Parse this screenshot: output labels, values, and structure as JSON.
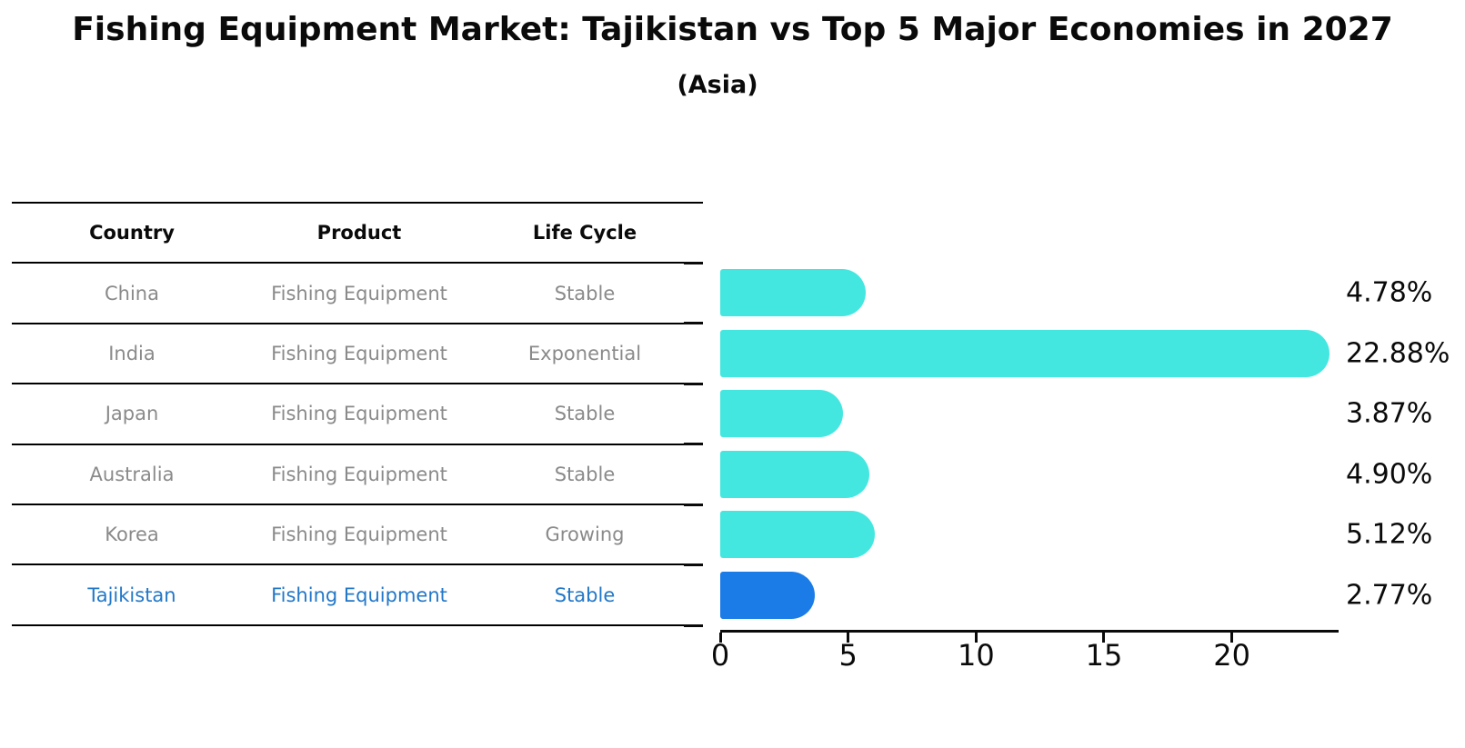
{
  "title": "Fishing Equipment Market: Tajikistan vs Top 5 Major Economies in 2027",
  "subtitle": "(Asia)",
  "table": {
    "headers": [
      "Country",
      "Product",
      "Life Cycle"
    ],
    "rows": [
      {
        "country": "China",
        "product": "Fishing Equipment",
        "life_cycle": "Stable"
      },
      {
        "country": "India",
        "product": "Fishing Equipment",
        "life_cycle": "Exponential"
      },
      {
        "country": "Japan",
        "product": "Fishing Equipment",
        "life_cycle": "Stable"
      },
      {
        "country": "Australia",
        "product": "Fishing Equipment",
        "life_cycle": "Stable"
      },
      {
        "country": "Korea",
        "product": "Fishing Equipment",
        "life_cycle": "Growing"
      },
      {
        "country": "Tajikistan",
        "product": "Fishing Equipment",
        "life_cycle": "Stable"
      }
    ],
    "highlight_row": "Tajikistan"
  },
  "chart_data": {
    "type": "bar",
    "orientation": "horizontal",
    "categories": [
      "China",
      "India",
      "Japan",
      "Australia",
      "Korea",
      "Tajikistan"
    ],
    "values": [
      4.78,
      22.88,
      3.87,
      4.9,
      5.12,
      2.77
    ],
    "value_labels": [
      "4.78%",
      "22.88%",
      "3.87%",
      "4.90%",
      "5.12%",
      "2.77%"
    ],
    "xticks": [
      0,
      5,
      10,
      15,
      20
    ],
    "xlim": [
      0,
      24.1
    ],
    "grid": false,
    "legend": false,
    "highlight_index": 5,
    "highlight_style": "dotted-border"
  },
  "colors": {
    "bar_cyan": "#44E7E0",
    "bar_blue": "#1B7CE8",
    "highlight_text": "#2277C8",
    "body_text": "#8A8A8A",
    "axis": "#0a0a0a",
    "background": "#FFFFFF"
  }
}
